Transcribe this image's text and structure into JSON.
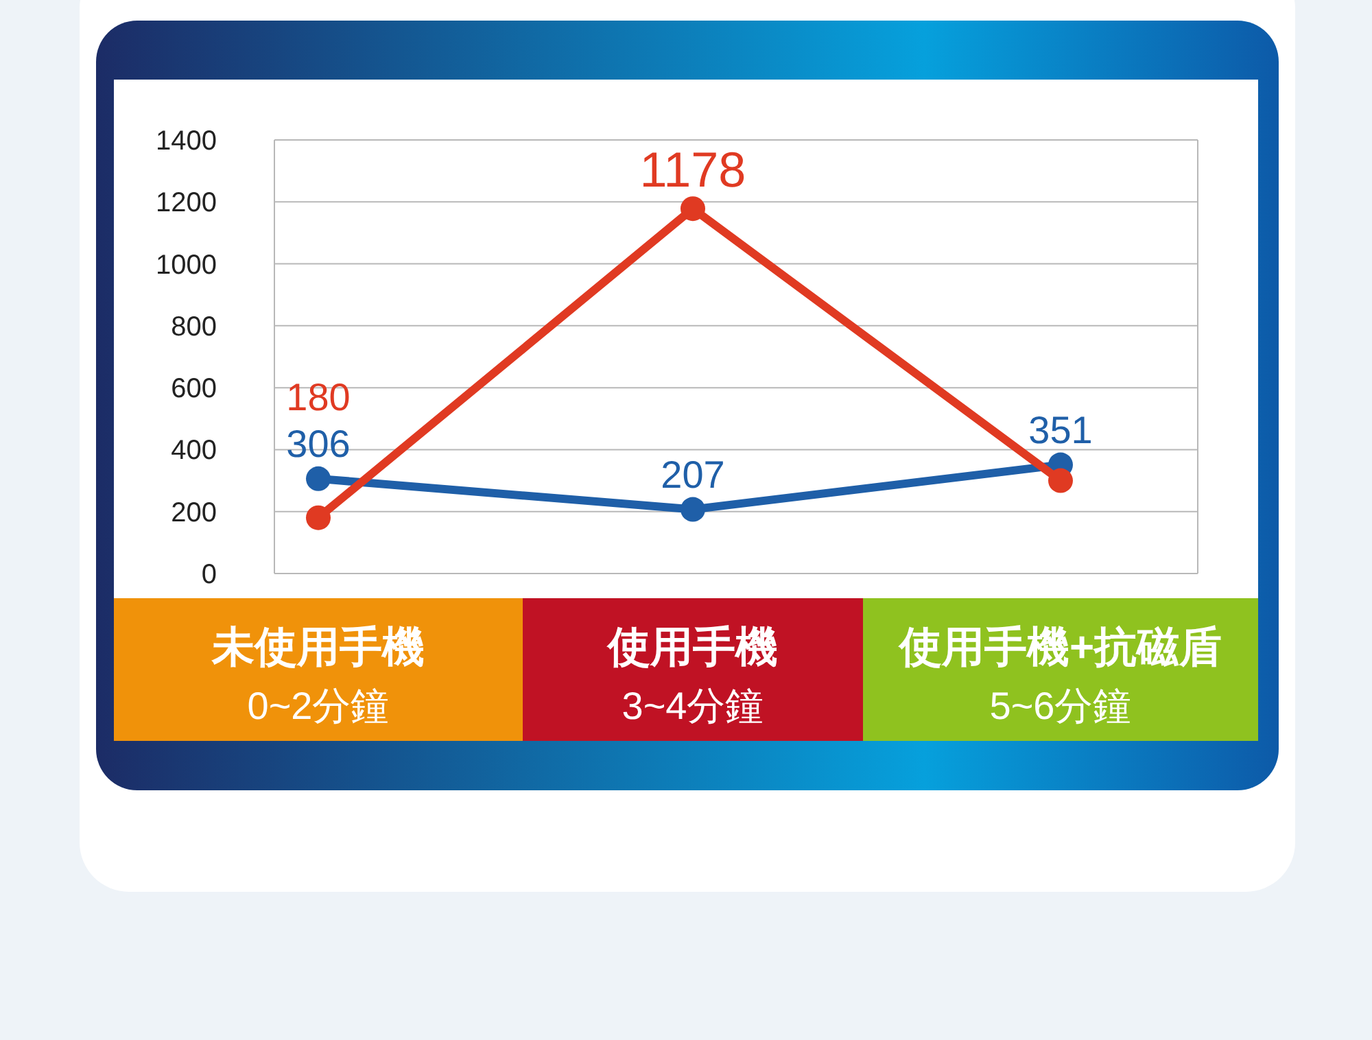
{
  "chart_data": {
    "type": "line",
    "categories": [
      "未使用手機\n0~2分鐘",
      "使用手機\n3~4分鐘",
      "使用手機+抗磁盾\n5~6分鐘"
    ],
    "series": [
      {
        "color": "#1f5fa8",
        "values": [
          306,
          207,
          351
        ],
        "value_labels": [
          "306",
          "207",
          "351"
        ]
      },
      {
        "color": "#e03a22",
        "values": [
          180,
          1178,
          300
        ],
        "value_labels": [
          "180",
          "1178",
          null
        ]
      }
    ],
    "ylim": [
      0,
      1400
    ],
    "yticks": [
      0,
      200,
      400,
      600,
      800,
      1000,
      1200,
      1400
    ],
    "grid": "y",
    "marker": "circle",
    "line_style": "solid"
  }
}
